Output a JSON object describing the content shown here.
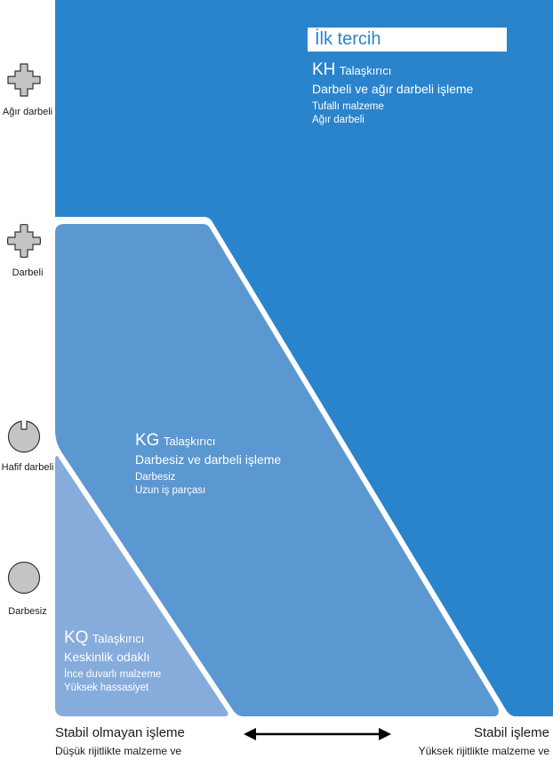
{
  "y_axis": {
    "heavy_interrupted": "Ağır darbeli",
    "interrupted": "Darbeli",
    "light_interrupted": "Hafif darbeli",
    "continuous": "Darbesiz"
  },
  "regions": {
    "kh": {
      "first_choice": "İlk tercih",
      "code": "KH",
      "suffix": "Talaşkırıcı",
      "title": "Darbeli ve ağır darbeli işleme",
      "note1": "Tufallı malzeme",
      "note2": "Ağır darbeli",
      "color": "#2a84cc"
    },
    "kg": {
      "code": "KG",
      "suffix": "Talaşkırıcı",
      "title": "Darbesiz ve darbeli işleme",
      "note1": "Darbesiz",
      "note2": "Uzun iş parçası",
      "color": "#5b97d0"
    },
    "kq": {
      "code": "KQ",
      "suffix": "Talaşkırıcı",
      "title": "Keskinlik odaklı",
      "note1": "İnce duvarlı malzeme",
      "note2": "Yüksek hassasiyet",
      "color": "#86acdc"
    }
  },
  "x_axis": {
    "left_title": "Stabil olmayan işleme",
    "left_sub": "Düşük rijitlikte malzeme ve",
    "right_title": "Stabil işleme",
    "right_sub": "Yüksek rijitlikte malzeme ve"
  },
  "colors": {
    "icon_fill": "#c4c4c4",
    "icon_stroke": "#333333",
    "text": "#1a1a1a"
  }
}
